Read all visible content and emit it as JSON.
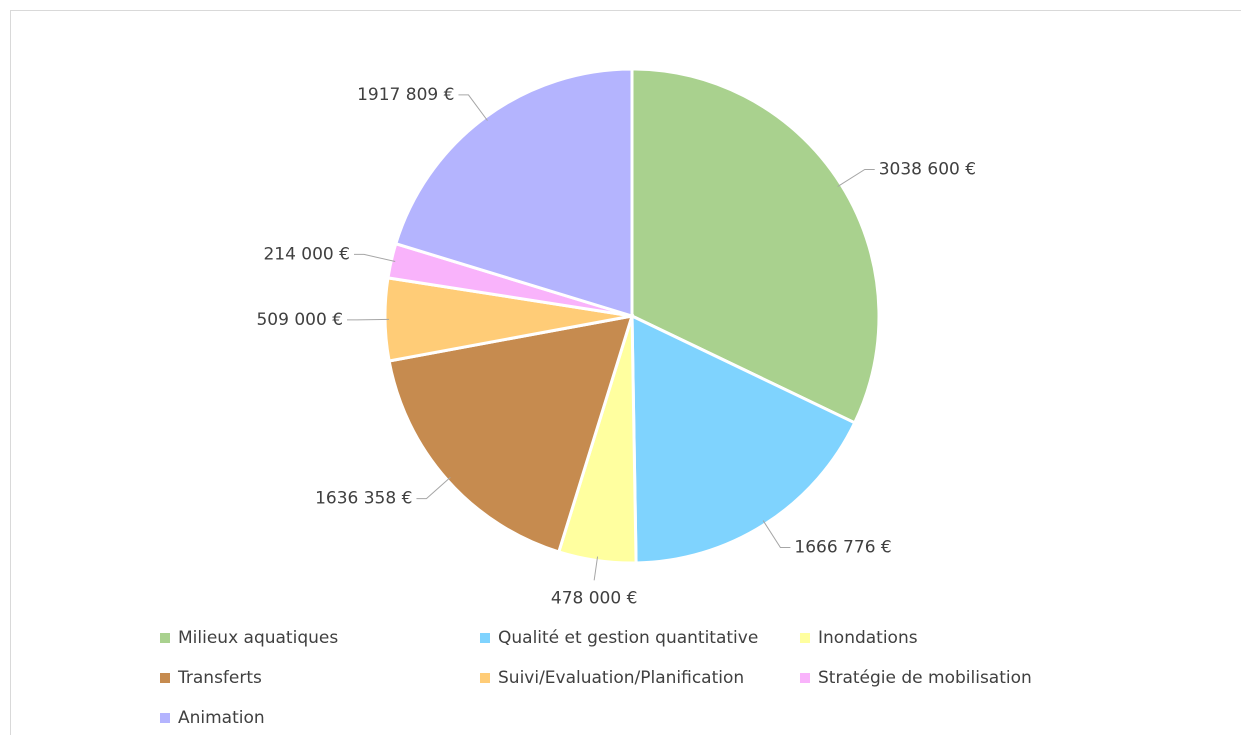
{
  "chart_data": {
    "type": "pie",
    "categories": [
      "Milieux aquatiques",
      "Qualité et gestion quantitative",
      "Inondations",
      "Transferts",
      "Suivi/Evaluation/Planification",
      "Stratégie de mobilisation",
      "Animation"
    ],
    "values": [
      3038600,
      1666776,
      478000,
      1636358,
      509000,
      214000,
      1917809
    ],
    "value_labels": [
      "3038 600 €",
      "1666 776 €",
      "478 000 €",
      "1636 358 €",
      "509 000 €",
      "214 000 €",
      "1917 809 €"
    ],
    "colors": [
      "#a9d18e",
      "#7fd3fe",
      "#ffff9f",
      "#c68b4f",
      "#ffcc77",
      "#f9b3fb",
      "#b4b4fe"
    ],
    "legend": "bottom"
  }
}
